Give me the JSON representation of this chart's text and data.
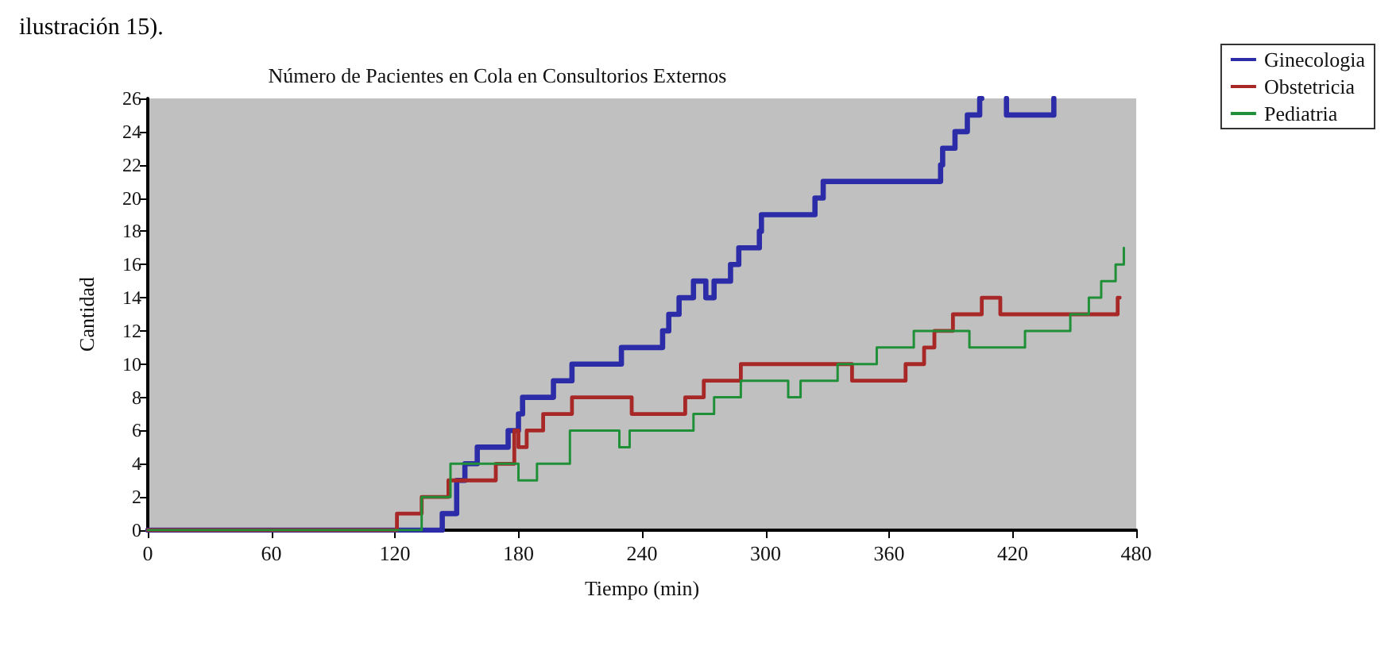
{
  "chart_data": {
    "type": "step",
    "title": "Número de Pacientes en Cola en Consultorios Externos",
    "xlabel": "Tiempo (min)",
    "ylabel": "Cantidad",
    "annotations": [
      "ilustración 15)."
    ],
    "series": [
      {
        "name": "Ginecologia",
        "color": "#2c2ca8",
        "x": [
          0,
          143,
          150,
          154,
          160,
          175,
          180,
          182,
          197,
          206,
          230,
          250,
          253,
          258,
          265,
          271,
          275,
          283,
          287,
          297,
          298,
          324,
          328,
          385,
          386,
          392,
          398,
          404,
          405,
          417,
          417,
          440
        ],
        "values": [
          0,
          1,
          3,
          4,
          5,
          6,
          7,
          8,
          9,
          10,
          11,
          12,
          13,
          14,
          15,
          14,
          15,
          16,
          17,
          18,
          19,
          20,
          21,
          22,
          23,
          24,
          25,
          26,
          null,
          26,
          25,
          26
        ]
      },
      {
        "name": "Obstetricia",
        "color": "#a82828",
        "x": [
          0,
          121,
          133,
          146,
          169,
          178,
          180,
          184,
          192,
          206,
          235,
          261,
          270,
          288,
          342,
          368,
          377,
          382,
          391,
          405,
          414,
          471,
          472
        ],
        "values": [
          0,
          1,
          2,
          3,
          4,
          6,
          5,
          6,
          7,
          8,
          7,
          8,
          9,
          10,
          9,
          10,
          11,
          12,
          13,
          14,
          13,
          14,
          14
        ]
      },
      {
        "name": "Pediatria",
        "color": "#209038",
        "x": [
          0,
          133,
          147,
          180,
          189,
          205,
          229,
          234,
          265,
          275,
          288,
          311,
          317,
          335,
          354,
          372,
          399,
          426,
          448,
          457,
          463,
          470,
          474
        ],
        "values": [
          0,
          2,
          4,
          3,
          4,
          6,
          5,
          6,
          7,
          8,
          9,
          8,
          9,
          10,
          11,
          12,
          11,
          12,
          13,
          14,
          15,
          16,
          17
        ]
      }
    ],
    "xlim": [
      0,
      480
    ],
    "xticks": [
      0,
      60,
      120,
      180,
      240,
      300,
      360,
      420,
      480
    ],
    "ylim": [
      0,
      26
    ],
    "yticks": [
      0,
      2,
      4,
      6,
      8,
      10,
      12,
      14,
      16,
      18,
      20,
      22,
      24,
      26
    ],
    "grid": false,
    "legend": "top right",
    "marker": "none",
    "line_style": "solid"
  }
}
